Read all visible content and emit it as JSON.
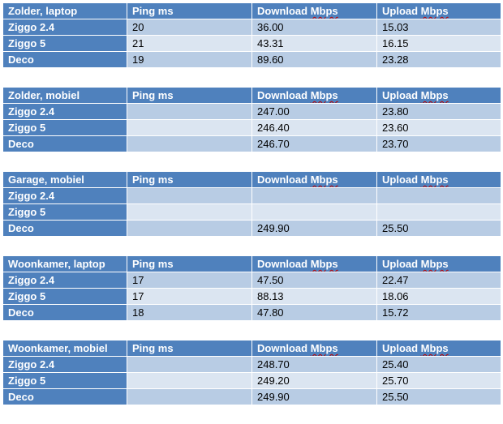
{
  "tables": [
    {
      "header": [
        "Zolder, laptop",
        "Ping ms",
        "Download Mbps",
        "Upload Mbps"
      ],
      "rows": [
        {
          "label": "Ziggo 2.4",
          "ping": "20",
          "download": "36.00",
          "upload": "15.03"
        },
        {
          "label": "Ziggo 5",
          "ping": "21",
          "download": "43.31",
          "upload": "16.15"
        },
        {
          "label": "Deco",
          "ping": "19",
          "download": "89.60",
          "upload": "23.28"
        }
      ]
    },
    {
      "header": [
        "Zolder, mobiel",
        "Ping ms",
        "Download Mbps",
        "Upload Mbps"
      ],
      "rows": [
        {
          "label": "Ziggo 2.4",
          "ping": "",
          "download": "247.00",
          "upload": "23.80"
        },
        {
          "label": "Ziggo 5",
          "ping": "",
          "download": "246.40",
          "upload": "23.60"
        },
        {
          "label": "Deco",
          "ping": "",
          "download": "246.70",
          "upload": "23.70"
        }
      ]
    },
    {
      "header": [
        "Garage, mobiel",
        "Ping ms",
        "Download Mbps",
        "Upload Mbps"
      ],
      "rows": [
        {
          "label": "Ziggo 2.4",
          "ping": "",
          "download": "",
          "upload": ""
        },
        {
          "label": "Ziggo 5",
          "ping": "",
          "download": "",
          "upload": ""
        },
        {
          "label": "Deco",
          "ping": "",
          "download": "249.90",
          "upload": "25.50"
        }
      ]
    },
    {
      "header": [
        "Woonkamer, laptop",
        "Ping ms",
        "Download Mbps",
        "Upload Mbps"
      ],
      "rows": [
        {
          "label": "Ziggo 2.4",
          "ping": "17",
          "download": "47.50",
          "upload": "22.47"
        },
        {
          "label": "Ziggo 5",
          "ping": "17",
          "download": "88.13",
          "upload": "18.06"
        },
        {
          "label": "Deco",
          "ping": "18",
          "download": "47.80",
          "upload": "15.72"
        }
      ]
    },
    {
      "header": [
        "Woonkamer, mobiel",
        "Ping ms",
        "Download Mbps",
        "Upload Mbps"
      ],
      "rows": [
        {
          "label": "Ziggo 2.4",
          "ping": "",
          "download": "248.70",
          "upload": "25.40"
        },
        {
          "label": "Ziggo 5",
          "ping": "",
          "download": "249.20",
          "upload": "25.70"
        },
        {
          "label": "Deco",
          "ping": "",
          "download": "249.90",
          "upload": "25.50"
        }
      ]
    }
  ],
  "colors": {
    "header_bg": "#4f81bd",
    "header_text": "#ffffff",
    "row_band_a": "#b8cce4",
    "row_band_b": "#dbe5f1",
    "spellcheck_underline": "#c00000"
  }
}
